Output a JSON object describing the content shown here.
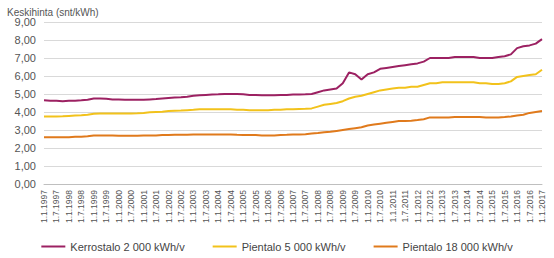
{
  "chart_data": {
    "type": "line",
    "ylabel": "Keskihinta (snt/kWh)",
    "categories": [
      "1.1.1997",
      null,
      "1.7.1997",
      null,
      "1.1.1998",
      null,
      "1.7.1998",
      null,
      "1.1.1999",
      null,
      "1.7.1999",
      null,
      "1.1.2000",
      null,
      "1.7.2000",
      null,
      "1.1.2001",
      null,
      "1.7.2001",
      null,
      "1.1.2002",
      null,
      "1.7.2002",
      null,
      "1.1.2003",
      null,
      "1.7.2003",
      null,
      "1.1.2004",
      null,
      "1.7.2004",
      null,
      "1.1.2005",
      null,
      "1.7.2005",
      null,
      "1.1.2006",
      null,
      "1.7.2006",
      null,
      "1.1.2007",
      null,
      "1.7.2007",
      null,
      "1.1.2008",
      null,
      "1.7.2008",
      null,
      "1.1.2009",
      null,
      "1.7.2009",
      null,
      "1.1.2010",
      null,
      "1.7.2010",
      null,
      "1.1.2011",
      null,
      "1.7.2011",
      null,
      "1.1.2012",
      null,
      "1.7.2012",
      null,
      "1.1.2013",
      null,
      "1.7.2013",
      null,
      "1.1.2014",
      null,
      "1.7.2014",
      null,
      "1.1.2015",
      null,
      "1.7.2015",
      null,
      "1.1.2016",
      null,
      "1.7.2016",
      null,
      "1.1.2017"
    ],
    "series": [
      {
        "name": "Kerrostalo 2 000 kWh/v",
        "color": "#9c2162",
        "values": [
          4.65,
          4.63,
          4.62,
          4.6,
          4.62,
          4.63,
          4.65,
          4.68,
          4.75,
          4.75,
          4.73,
          4.7,
          4.7,
          4.68,
          4.68,
          4.68,
          4.68,
          4.7,
          4.72,
          4.75,
          4.78,
          4.8,
          4.82,
          4.85,
          4.9,
          4.93,
          4.95,
          4.97,
          4.98,
          5.0,
          5.0,
          5.0,
          4.98,
          4.95,
          4.95,
          4.93,
          4.93,
          4.93,
          4.95,
          4.95,
          4.97,
          4.97,
          4.98,
          5.0,
          5.1,
          5.2,
          5.25,
          5.3,
          5.6,
          6.2,
          6.1,
          5.8,
          6.1,
          6.2,
          6.4,
          6.45,
          6.5,
          6.55,
          6.6,
          6.65,
          6.7,
          6.8,
          7.0,
          7.0,
          7.0,
          7.0,
          7.05,
          7.05,
          7.05,
          7.05,
          7.0,
          7.0,
          7.0,
          7.05,
          7.1,
          7.2,
          7.55,
          7.65,
          7.7,
          7.8,
          8.05
        ]
      },
      {
        "name": "Pientalo 5 000 kWh/v",
        "color": "#f2c21b",
        "values": [
          3.75,
          3.75,
          3.75,
          3.76,
          3.78,
          3.8,
          3.82,
          3.85,
          3.9,
          3.92,
          3.92,
          3.92,
          3.92,
          3.92,
          3.92,
          3.93,
          3.95,
          3.98,
          4.0,
          4.02,
          4.05,
          4.07,
          4.08,
          4.1,
          4.12,
          4.15,
          4.15,
          4.15,
          4.15,
          4.15,
          4.15,
          4.13,
          4.12,
          4.1,
          4.1,
          4.1,
          4.1,
          4.12,
          4.13,
          4.15,
          4.15,
          4.17,
          4.18,
          4.2,
          4.3,
          4.4,
          4.45,
          4.5,
          4.6,
          4.75,
          4.85,
          4.9,
          5.0,
          5.1,
          5.2,
          5.25,
          5.3,
          5.35,
          5.35,
          5.4,
          5.4,
          5.5,
          5.6,
          5.6,
          5.65,
          5.65,
          5.65,
          5.65,
          5.65,
          5.65,
          5.6,
          5.6,
          5.55,
          5.55,
          5.6,
          5.7,
          5.95,
          6.0,
          6.05,
          6.1,
          6.35
        ]
      },
      {
        "name": "Pientalo 18 000 kWh/v",
        "color": "#e07a1c",
        "values": [
          2.6,
          2.6,
          2.6,
          2.6,
          2.6,
          2.62,
          2.63,
          2.65,
          2.7,
          2.7,
          2.7,
          2.7,
          2.68,
          2.68,
          2.68,
          2.68,
          2.7,
          2.7,
          2.7,
          2.72,
          2.72,
          2.73,
          2.73,
          2.73,
          2.75,
          2.75,
          2.75,
          2.75,
          2.75,
          2.75,
          2.75,
          2.73,
          2.72,
          2.72,
          2.72,
          2.7,
          2.7,
          2.7,
          2.72,
          2.73,
          2.75,
          2.75,
          2.77,
          2.8,
          2.83,
          2.87,
          2.9,
          2.95,
          3.0,
          3.05,
          3.1,
          3.15,
          3.25,
          3.3,
          3.35,
          3.4,
          3.45,
          3.5,
          3.5,
          3.52,
          3.55,
          3.6,
          3.7,
          3.7,
          3.7,
          3.7,
          3.72,
          3.72,
          3.72,
          3.72,
          3.72,
          3.7,
          3.7,
          3.7,
          3.72,
          3.75,
          3.8,
          3.85,
          3.95,
          4.0,
          4.05
        ]
      }
    ],
    "ylim": [
      0,
      9
    ],
    "yticks": [
      {
        "value": 0,
        "label": "0,00"
      },
      {
        "value": 1,
        "label": "1,00"
      },
      {
        "value": 2,
        "label": "2,00"
      },
      {
        "value": 3,
        "label": "3,00"
      },
      {
        "value": 4,
        "label": "4,00"
      },
      {
        "value": 5,
        "label": "5,00"
      },
      {
        "value": 6,
        "label": "6,00"
      },
      {
        "value": 7,
        "label": "7,00"
      },
      {
        "value": 8,
        "label": "8,00"
      },
      {
        "value": 9,
        "label": "9,00"
      }
    ],
    "grid": true,
    "legend": "bottom"
  }
}
